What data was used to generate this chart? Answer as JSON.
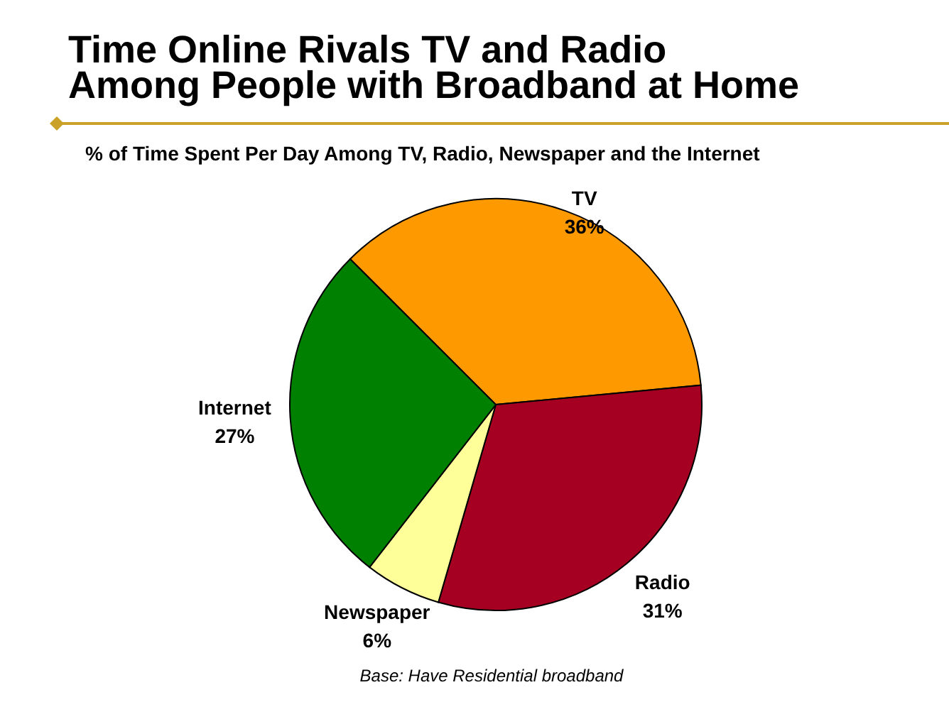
{
  "chart_data": {
    "type": "pie",
    "title": "Time Online Rivals TV and Radio\nAmong People with Broadband at Home",
    "subtitle": "% of Time Spent Per Day Among TV, Radio, Newspaper and the Internet",
    "categories": [
      "TV",
      "Radio",
      "Newspaper",
      "Internet"
    ],
    "values": [
      36,
      31,
      6,
      27
    ],
    "colors": [
      "#ff9900",
      "#a50021",
      "#ffff99",
      "#008000"
    ],
    "value_labels": [
      "36%",
      "31%",
      "6%",
      "27%"
    ],
    "annotations": [
      "Base: Have Residential broadband"
    ]
  }
}
